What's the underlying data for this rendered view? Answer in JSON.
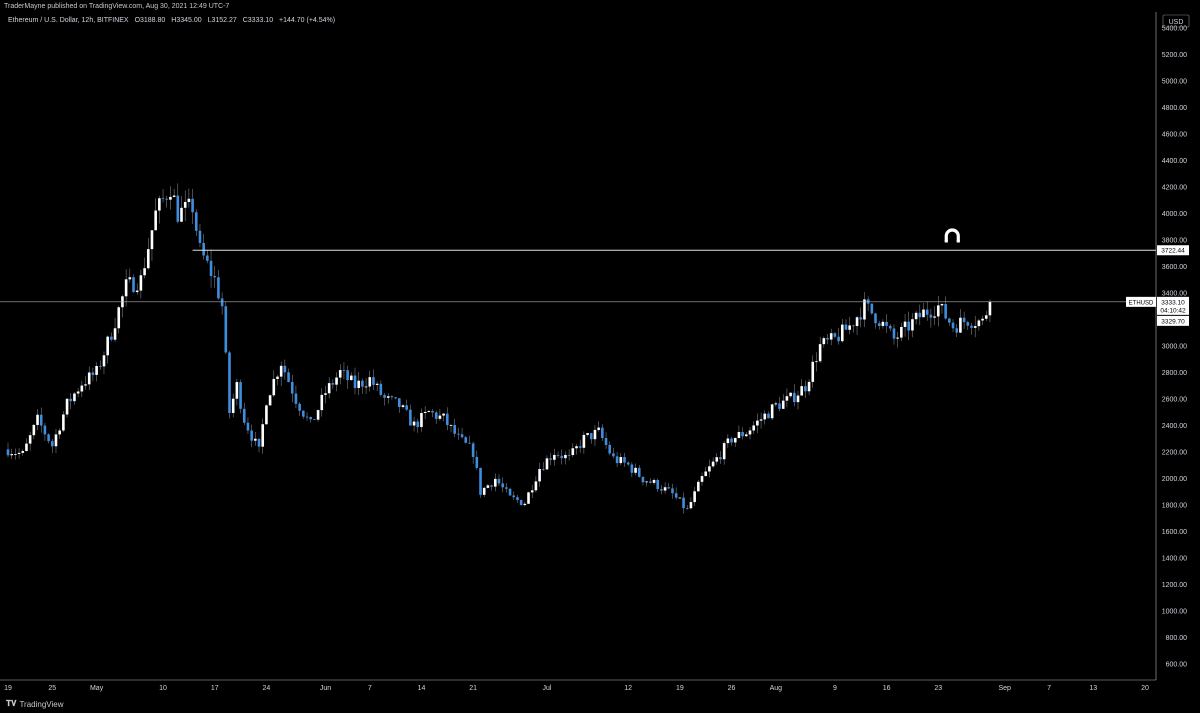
{
  "header": {
    "publisher": "TraderMayne published on TradingView.com, Aug 30, 2021 12:49 UTC-7",
    "symbol": "Ethereum / U.S. Dollar, 12h, BITFINEX",
    "open": "O3188.80",
    "high": "H3345.00",
    "low": "L3152.27",
    "close": "C3333.10",
    "change": "+144.70 (+4.54%)"
  },
  "footer": {
    "brand": "TradingView",
    "logo_icon": "tradingview-logo-icon"
  },
  "chart_data": {
    "type": "candlestick",
    "interval": "12h",
    "currency_label": "USD",
    "y_ticks": [
      600,
      800,
      1000,
      1200,
      1400,
      1600,
      1800,
      2000,
      2200,
      2400,
      2600,
      2800,
      3000,
      3200,
      3400,
      3600,
      3800,
      4000,
      4200,
      4400,
      4600,
      4800,
      5000,
      5200,
      5400
    ],
    "ylim": [
      480,
      5520
    ],
    "x_ticks": [
      {
        "label": "19",
        "date": "2021-04-19"
      },
      {
        "label": "25",
        "date": "2021-04-25"
      },
      {
        "label": "May",
        "date": "2021-05-01"
      },
      {
        "label": "10",
        "date": "2021-05-10"
      },
      {
        "label": "17",
        "date": "2021-05-17"
      },
      {
        "label": "24",
        "date": "2021-05-24"
      },
      {
        "label": "Jun",
        "date": "2021-06-01"
      },
      {
        "label": "7",
        "date": "2021-06-07"
      },
      {
        "label": "14",
        "date": "2021-06-14"
      },
      {
        "label": "21",
        "date": "2021-06-21"
      },
      {
        "label": "Jul",
        "date": "2021-07-01"
      },
      {
        "label": "12",
        "date": "2021-07-12"
      },
      {
        "label": "19",
        "date": "2021-07-19"
      },
      {
        "label": "26",
        "date": "2021-07-26"
      },
      {
        "label": "Aug",
        "date": "2021-08-01"
      },
      {
        "label": "9",
        "date": "2021-08-09"
      },
      {
        "label": "16",
        "date": "2021-08-16"
      },
      {
        "label": "23",
        "date": "2021-08-23"
      },
      {
        "label": "Sep",
        "date": "2021-09-01"
      },
      {
        "label": "7",
        "date": "2021-09-07"
      },
      {
        "label": "13",
        "date": "2021-09-13"
      },
      {
        "label": "20",
        "date": "2021-09-20"
      }
    ],
    "xlim": [
      "2021-04-19",
      "2021-09-20"
    ],
    "up_color": "#ffffff",
    "down_color": "#3d8ee0",
    "path": [
      [
        "2021-04-19",
        2220
      ],
      [
        "2021-04-21",
        2180
      ],
      [
        "2021-04-23",
        2440
      ],
      [
        "2021-04-25",
        2250
      ],
      [
        "2021-04-27",
        2560
      ],
      [
        "2021-04-29",
        2720
      ],
      [
        "2021-05-01",
        2800
      ],
      [
        "2021-05-03",
        3100
      ],
      [
        "2021-05-05",
        3450
      ],
      [
        "2021-05-07",
        3500
      ],
      [
        "2021-05-09",
        4000
      ],
      [
        "2021-05-11",
        4200
      ],
      [
        "2021-05-12",
        4000
      ],
      [
        "2021-05-14",
        4050
      ],
      [
        "2021-05-15",
        3720
      ],
      [
        "2021-05-17",
        3500
      ],
      [
        "2021-05-18",
        3300
      ],
      [
        "2021-05-19",
        2500
      ],
      [
        "2021-05-20",
        2700
      ],
      [
        "2021-05-21",
        2450
      ],
      [
        "2021-05-23",
        2200
      ],
      [
        "2021-05-24",
        2600
      ],
      [
        "2021-05-26",
        2880
      ],
      [
        "2021-05-28",
        2600
      ],
      [
        "2021-05-30",
        2400
      ],
      [
        "2021-06-01",
        2650
      ],
      [
        "2021-06-03",
        2800
      ],
      [
        "2021-06-05",
        2700
      ],
      [
        "2021-06-07",
        2750
      ],
      [
        "2021-06-09",
        2600
      ],
      [
        "2021-06-11",
        2550
      ],
      [
        "2021-06-13",
        2400
      ],
      [
        "2021-06-15",
        2500
      ],
      [
        "2021-06-17",
        2450
      ],
      [
        "2021-06-19",
        2300
      ],
      [
        "2021-06-21",
        2200
      ],
      [
        "2021-06-22",
        1900
      ],
      [
        "2021-06-24",
        2000
      ],
      [
        "2021-06-26",
        1850
      ],
      [
        "2021-06-28",
        1820
      ],
      [
        "2021-06-30",
        2080
      ],
      [
        "2021-07-02",
        2200
      ],
      [
        "2021-07-04",
        2150
      ],
      [
        "2021-07-06",
        2300
      ],
      [
        "2021-07-08",
        2350
      ],
      [
        "2021-07-10",
        2150
      ],
      [
        "2021-07-12",
        2100
      ],
      [
        "2021-07-14",
        2000
      ],
      [
        "2021-07-16",
        1950
      ],
      [
        "2021-07-18",
        1880
      ],
      [
        "2021-07-20",
        1760
      ],
      [
        "2021-07-22",
        2000
      ],
      [
        "2021-07-24",
        2150
      ],
      [
        "2021-07-26",
        2300
      ],
      [
        "2021-07-28",
        2350
      ],
      [
        "2021-07-30",
        2450
      ],
      [
        "2021-08-01",
        2550
      ],
      [
        "2021-08-03",
        2600
      ],
      [
        "2021-08-05",
        2700
      ],
      [
        "2021-08-07",
        3000
      ],
      [
        "2021-08-09",
        3050
      ],
      [
        "2021-08-11",
        3150
      ],
      [
        "2021-08-13",
        3300
      ],
      [
        "2021-08-15",
        3200
      ],
      [
        "2021-08-17",
        3050
      ],
      [
        "2021-08-19",
        3150
      ],
      [
        "2021-08-21",
        3250
      ],
      [
        "2021-08-23",
        3300
      ],
      [
        "2021-08-25",
        3150
      ],
      [
        "2021-08-27",
        3200
      ],
      [
        "2021-08-29",
        3180
      ],
      [
        "2021-08-30",
        3333.1
      ]
    ],
    "horizontal_lines": [
      {
        "value": 3722.44,
        "label": "3722.44"
      },
      {
        "value": 3333.1,
        "label": "3333.10"
      }
    ],
    "price_tag": {
      "symbol": "ETHUSD",
      "price": "3333.10",
      "countdown": "04:10:42",
      "ask": "3329.70"
    },
    "annotation": {
      "icon": "magnet-icon",
      "date": "2021-08-23",
      "value": 3830
    }
  }
}
